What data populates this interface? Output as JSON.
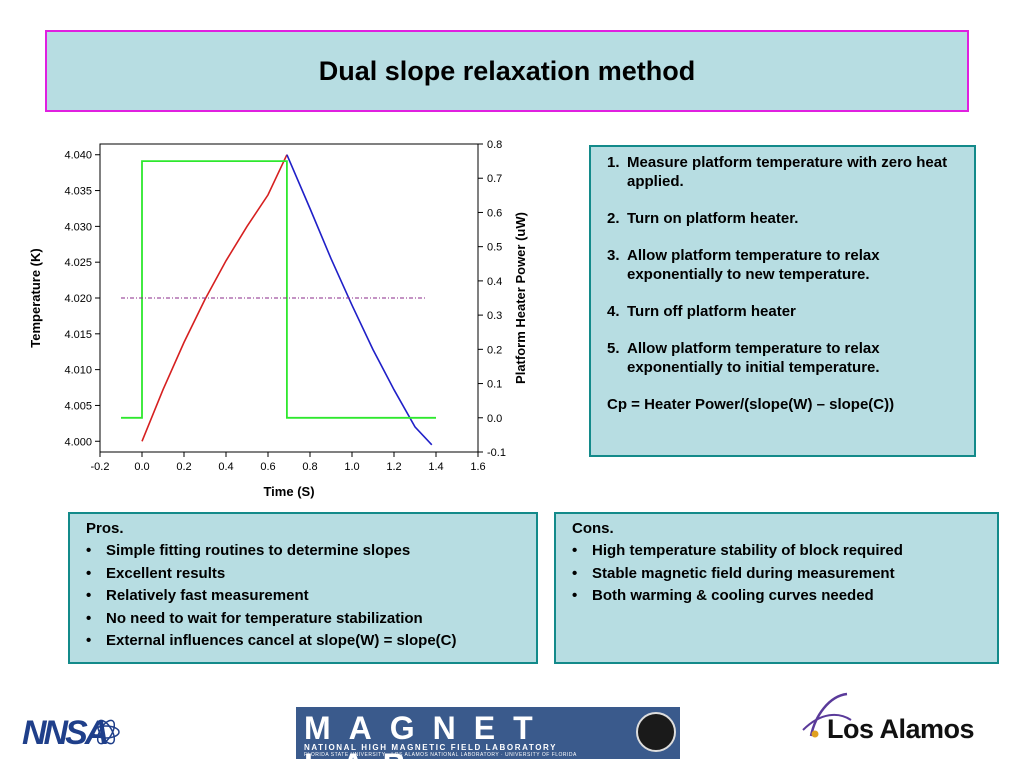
{
  "title": "Dual slope relaxation method",
  "steps": [
    {
      "num": "1.",
      "text": "Measure platform temperature with zero heat applied."
    },
    {
      "num": "2.",
      "text": "Turn on platform heater."
    },
    {
      "num": "3.",
      "text": "Allow platform temperature to relax exponentially to new temperature."
    },
    {
      "num": "4.",
      "text": "Turn off platform heater"
    },
    {
      "num": "5.",
      "text": "Allow platform temperature to relax exponentially to initial temperature."
    }
  ],
  "formula": "Cp = Heater Power/(slope(W) – slope(C))",
  "pros": {
    "head": "Pros.",
    "items": [
      "Simple fitting routines to determine slopes",
      "Excellent results",
      "Relatively fast measurement",
      "No need to wait for temperature stabilization",
      "External influences cancel at slope(W) = slope(C)"
    ]
  },
  "cons": {
    "head": "Cons.",
    "items": [
      "High temperature stability of block required",
      "Stable magnetic field during measurement",
      "Both warming & cooling curves needed"
    ]
  },
  "logos": {
    "nnsa": "NNSA",
    "maglab": "MAGNET LAB",
    "maglab_line": "NATIONAL HIGH MAGNETIC FIELD LABORATORY",
    "maglab_line2": "FLORIDA STATE UNIVERSITY · LOS ALAMOS NATIONAL LABORATORY · UNIVERSITY OF FLORIDA",
    "lanl": "Los Alamos"
  },
  "colors": {
    "title_bg": "#b7dde2",
    "title_border": "#e020e0",
    "box_border": "#138a8a",
    "warming_curve": "#d62020",
    "cooling_curve": "#2020c8",
    "heater_power": "#2ee82e",
    "midline": "#8a2a8a"
  },
  "chart_data": {
    "type": "line",
    "xlabel": "Time (S)",
    "ylabel": "Temperature (K)",
    "y2label": "Platform Heater Power (uW)",
    "xlim": [
      -0.2,
      1.6
    ],
    "ylim": [
      3.9985,
      4.0415
    ],
    "y2lim": [
      -0.1,
      0.8
    ],
    "x_ticks": [
      -0.2,
      0.0,
      0.2,
      0.4,
      0.6,
      0.8,
      1.0,
      1.2,
      1.4,
      1.6
    ],
    "x_tick_labels": [
      "-0.2",
      "0.0",
      "0.2",
      "0.4",
      "0.6",
      "0.8",
      "1.0",
      "1.2",
      "1.4",
      "1.6"
    ],
    "y_ticks": [
      4.0,
      4.005,
      4.01,
      4.015,
      4.02,
      4.025,
      4.03,
      4.035,
      4.04
    ],
    "y_tick_labels": [
      "4.000",
      "4.005",
      "4.010",
      "4.015",
      "4.020",
      "4.025",
      "4.030",
      "4.035",
      "4.040"
    ],
    "y2_ticks": [
      -0.1,
      0.0,
      0.1,
      0.2,
      0.3,
      0.4,
      0.5,
      0.6,
      0.7,
      0.8
    ],
    "y2_tick_labels": [
      "-0.1",
      "0.0",
      "0.1",
      "0.2",
      "0.3",
      "0.4",
      "0.5",
      "0.6",
      "0.7",
      "0.8"
    ],
    "grid": false,
    "series": [
      {
        "axis": "y",
        "points": [
          [
            0.0,
            4.0
          ],
          [
            0.1,
            4.0072
          ],
          [
            0.2,
            4.0138
          ],
          [
            0.3,
            4.0198
          ],
          [
            0.4,
            4.0252
          ],
          [
            0.5,
            4.03
          ],
          [
            0.6,
            4.0344
          ],
          [
            0.69,
            4.04
          ]
        ]
      },
      {
        "axis": "y",
        "points": [
          [
            0.69,
            4.04
          ],
          [
            0.8,
            4.0325
          ],
          [
            0.9,
            4.0255
          ],
          [
            1.0,
            4.019
          ],
          [
            1.1,
            4.0128
          ],
          [
            1.2,
            4.0072
          ],
          [
            1.3,
            4.002
          ],
          [
            1.38,
            3.9995
          ]
        ]
      },
      {
        "axis": "y2",
        "points": [
          [
            -0.1,
            0.0
          ],
          [
            0.0,
            0.0
          ],
          [
            0.0,
            0.75
          ],
          [
            0.69,
            0.75
          ],
          [
            0.69,
            0.0
          ],
          [
            1.4,
            0.0
          ]
        ]
      },
      {
        "axis": "y",
        "points": [
          [
            -0.1,
            4.02
          ],
          [
            1.35,
            4.02
          ]
        ]
      }
    ]
  }
}
